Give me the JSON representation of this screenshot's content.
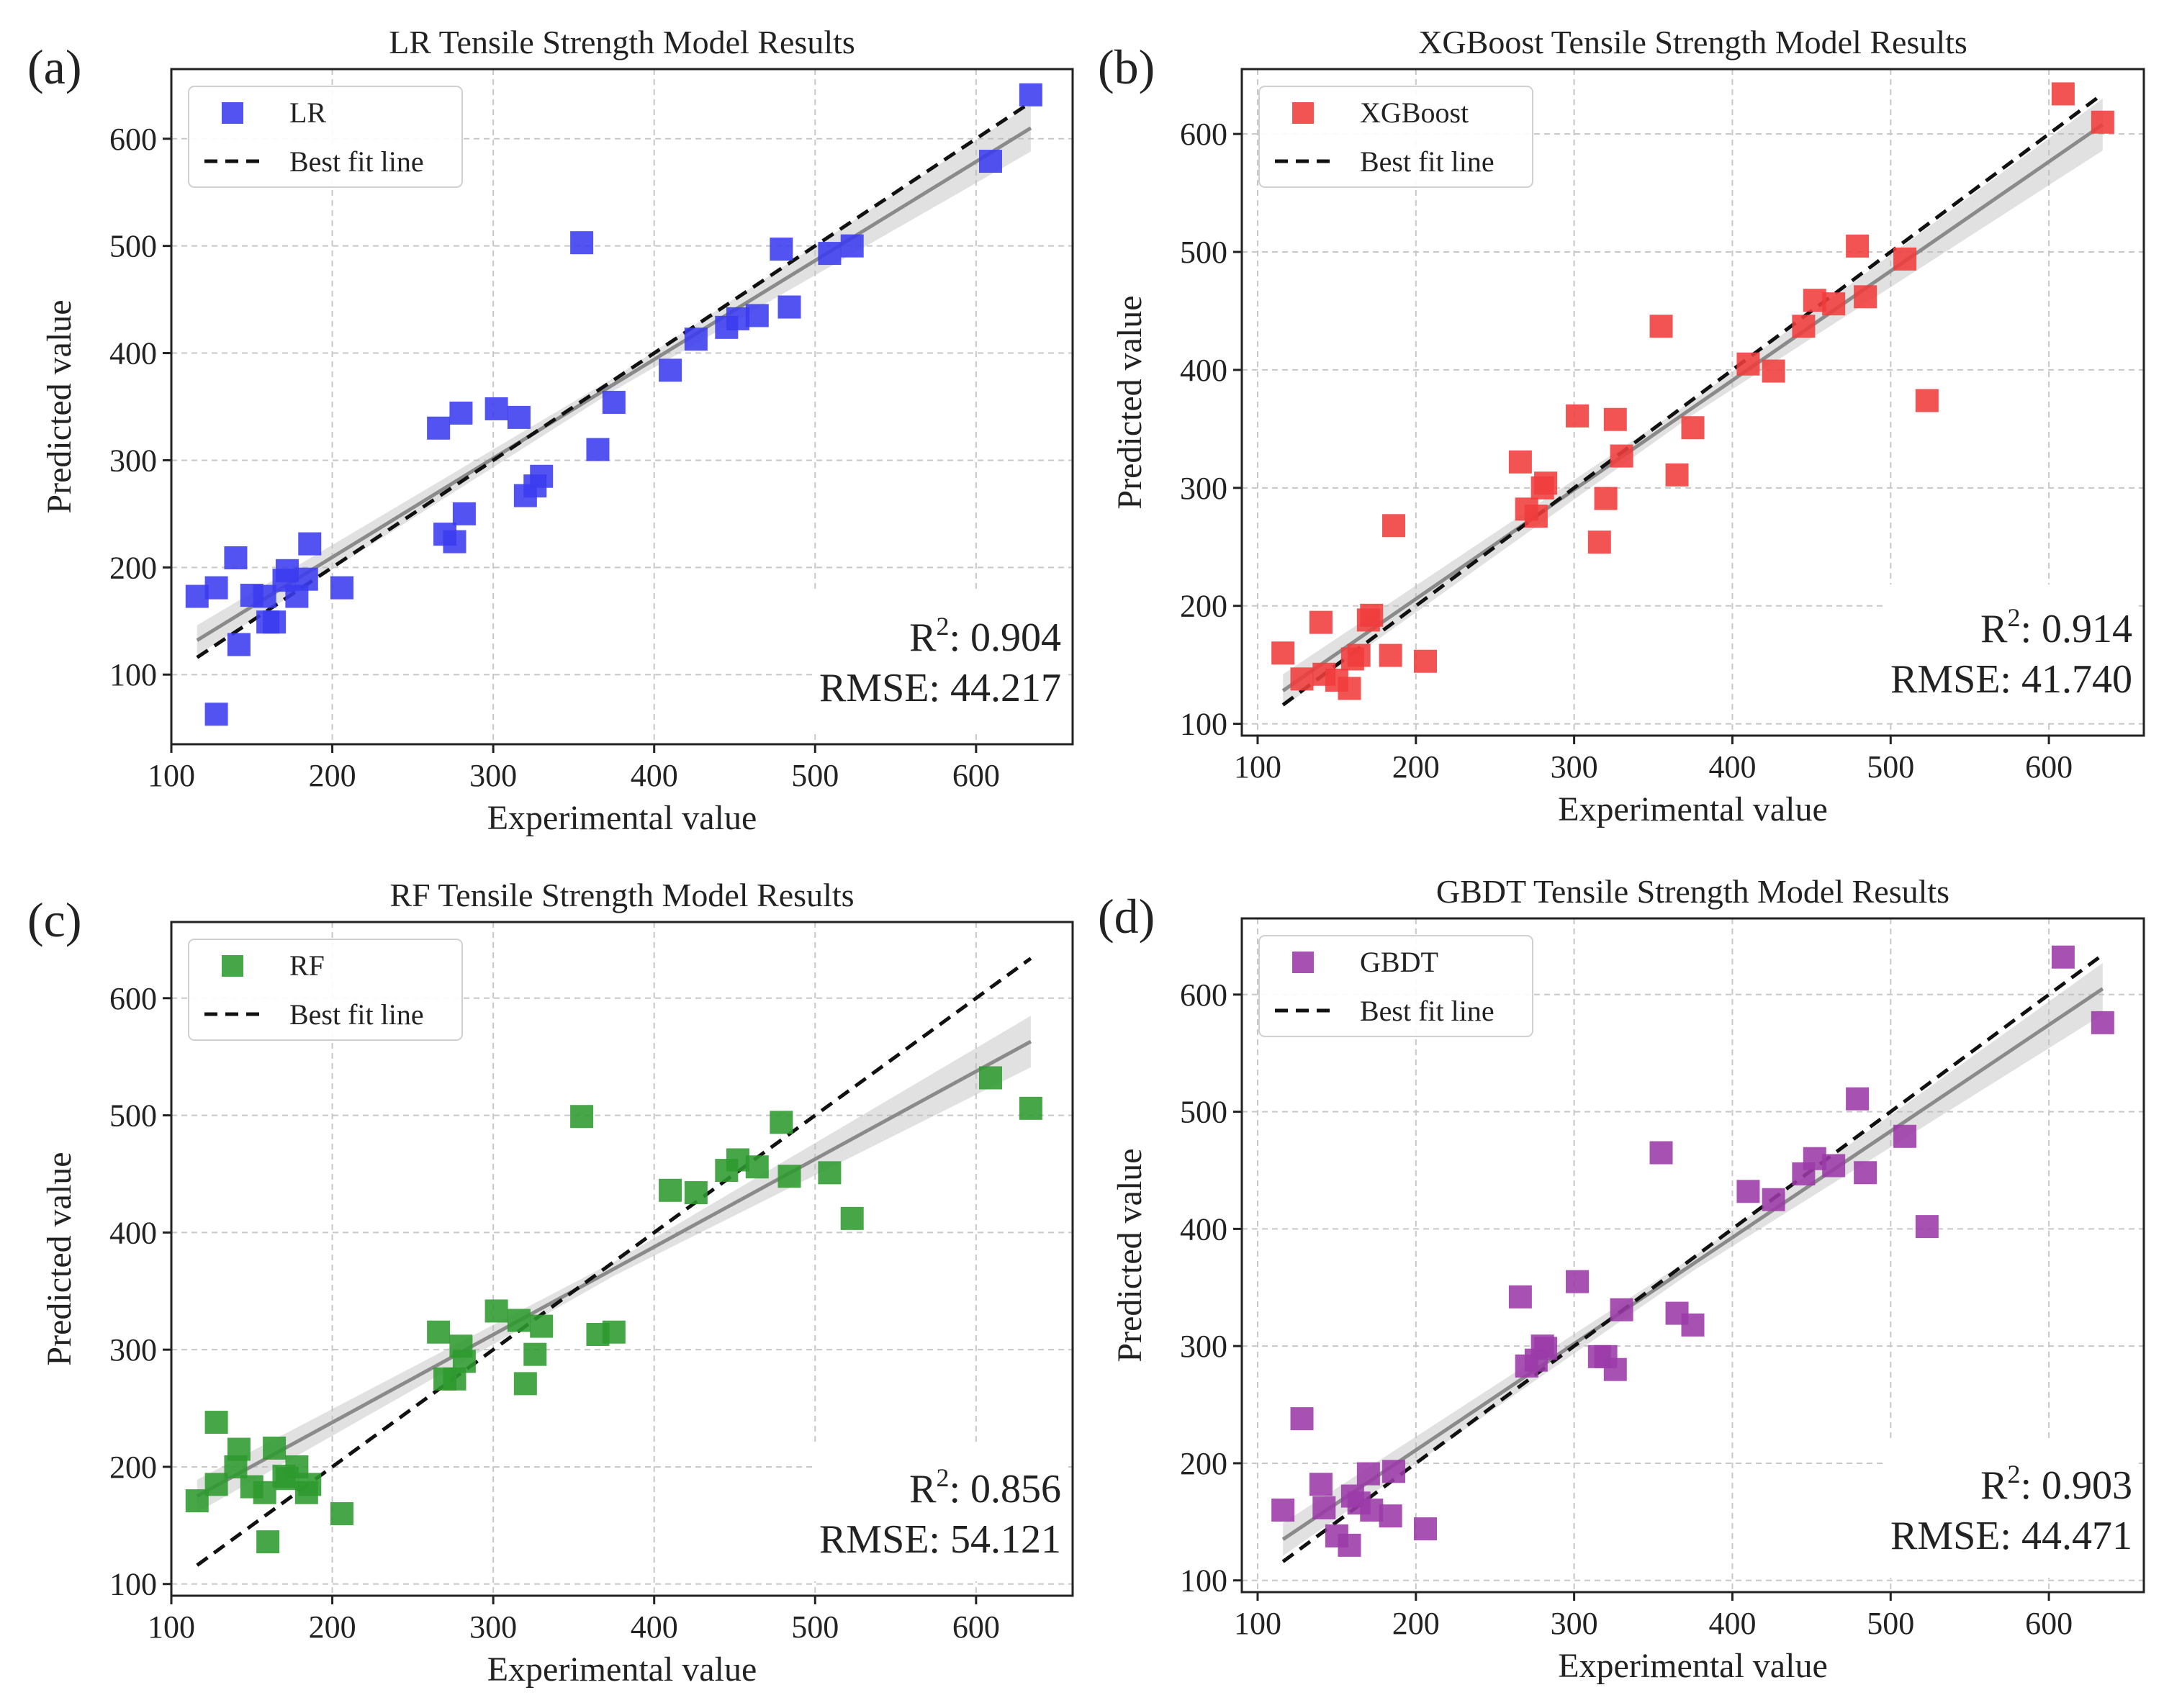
{
  "chart_data": [
    {
      "type": "scatter",
      "panel_label": "(a)",
      "title": "LR Tensile Strength Model Results",
      "xlabel": "Experimental value",
      "ylabel": "Predicted value",
      "xlim": [
        100,
        660
      ],
      "ylim": [
        35,
        665
      ],
      "xticks": [
        100,
        200,
        300,
        400,
        500,
        600
      ],
      "yticks": [
        100,
        200,
        300,
        400,
        500,
        600
      ],
      "grid": true,
      "legend_position": "top-left",
      "color": "#3b3bf0",
      "series": [
        {
          "name": "LR",
          "x": [
            116,
            128,
            128,
            140,
            142,
            150,
            158,
            160,
            164,
            170,
            172,
            178,
            184,
            186,
            206,
            266,
            270,
            276,
            280,
            282,
            302,
            316,
            320,
            326,
            330,
            355,
            365,
            375,
            410,
            426,
            445,
            452,
            464,
            479,
            484,
            509,
            523,
            609,
            634
          ],
          "y": [
            173,
            181,
            63,
            209,
            128,
            174,
            173,
            149,
            149,
            188,
            197,
            173,
            189,
            222,
            181,
            330,
            231,
            224,
            344,
            250,
            348,
            340,
            267,
            276,
            285,
            503,
            310,
            354,
            384,
            413,
            424,
            432,
            435,
            497,
            443,
            493,
            500,
            579,
            641
          ]
        }
      ],
      "ideal_line": {
        "name": "Best fit line",
        "x": [
          116,
          634
        ],
        "y": [
          116,
          634
        ]
      },
      "regression_line": {
        "x": [
          116,
          634
        ],
        "y": [
          132,
          610
        ]
      },
      "r2_label": "R",
      "r2_sup": "2",
      "r2_value": ": 0.904",
      "rmse_text": "RMSE: 44.217"
    },
    {
      "type": "scatter",
      "panel_label": "(b)",
      "title": "XGBoost Tensile Strength Model Results",
      "xlabel": "Experimental value",
      "ylabel": "Predicted value",
      "xlim": [
        90,
        660
      ],
      "ylim": [
        90,
        655
      ],
      "xticks": [
        100,
        200,
        300,
        400,
        500,
        600
      ],
      "yticks": [
        100,
        200,
        300,
        400,
        500,
        600
      ],
      "grid": true,
      "legend_position": "top-left",
      "color": "#f03b3b",
      "series": [
        {
          "name": "XGBoost",
          "x": [
            116,
            128,
            140,
            142,
            150,
            158,
            160,
            164,
            170,
            172,
            184,
            186,
            206,
            266,
            270,
            276,
            280,
            282,
            302,
            316,
            320,
            326,
            330,
            355,
            365,
            375,
            410,
            426,
            445,
            452,
            464,
            479,
            484,
            509,
            523,
            609,
            634
          ],
          "y": [
            160,
            138,
            186,
            142,
            137,
            130,
            155,
            158,
            188,
            192,
            158,
            268,
            153,
            322,
            282,
            276,
            300,
            304,
            361,
            254,
            291,
            358,
            327,
            437,
            311,
            351,
            405,
            399,
            437,
            459,
            456,
            505,
            462,
            494,
            374,
            634,
            610
          ]
        }
      ],
      "ideal_line": {
        "name": "Best fit line",
        "x": [
          116,
          634
        ],
        "y": [
          116,
          634
        ]
      },
      "regression_line": {
        "x": [
          116,
          634
        ],
        "y": [
          128,
          608
        ]
      },
      "r2_label": "R",
      "r2_sup": "2",
      "r2_value": ": 0.914",
      "rmse_text": "RMSE: 41.740"
    },
    {
      "type": "scatter",
      "panel_label": "(c)",
      "title": "RF Tensile Strength Model Results",
      "xlabel": "Experimental value",
      "ylabel": "Predicted value",
      "xlim": [
        100,
        660
      ],
      "ylim": [
        90,
        665
      ],
      "xticks": [
        100,
        200,
        300,
        400,
        500,
        600
      ],
      "yticks": [
        100,
        200,
        300,
        400,
        500,
        600
      ],
      "grid": true,
      "legend_position": "top-left",
      "color": "#2e9a2e",
      "series": [
        {
          "name": "RF",
          "x": [
            116,
            128,
            128,
            140,
            142,
            150,
            158,
            160,
            164,
            170,
            172,
            178,
            184,
            186,
            206,
            266,
            270,
            276,
            280,
            282,
            302,
            316,
            320,
            326,
            330,
            355,
            365,
            375,
            410,
            426,
            445,
            452,
            464,
            479,
            484,
            509,
            523,
            609,
            634
          ],
          "y": [
            171,
            185,
            238,
            200,
            215,
            183,
            178,
            136,
            216,
            192,
            190,
            200,
            178,
            185,
            160,
            315,
            275,
            275,
            303,
            290,
            333,
            325,
            271,
            296,
            320,
            499,
            313,
            315,
            436,
            434,
            453,
            462,
            456,
            494,
            448,
            451,
            412,
            532,
            506
          ]
        }
      ],
      "ideal_line": {
        "name": "Best fit line",
        "x": [
          116,
          634
        ],
        "y": [
          116,
          634
        ]
      },
      "regression_line": {
        "x": [
          116,
          634
        ],
        "y": [
          175,
          563
        ]
      },
      "r2_label": "R",
      "r2_sup": "2",
      "r2_value": ": 0.856",
      "rmse_text": "RMSE: 54.121"
    },
    {
      "type": "scatter",
      "panel_label": "(d)",
      "title": "GBDT Tensile Strength Model Results",
      "xlabel": "Experimental value",
      "ylabel": "Predicted value",
      "xlim": [
        90,
        660
      ],
      "ylim": [
        90,
        665
      ],
      "xticks": [
        100,
        200,
        300,
        400,
        500,
        600
      ],
      "yticks": [
        100,
        200,
        300,
        400,
        500,
        600
      ],
      "grid": true,
      "legend_position": "top-left",
      "color": "#9b3aa8",
      "series": [
        {
          "name": "GBDT",
          "x": [
            116,
            128,
            140,
            142,
            150,
            158,
            160,
            164,
            170,
            172,
            184,
            186,
            206,
            266,
            270,
            276,
            280,
            282,
            302,
            316,
            320,
            326,
            330,
            355,
            365,
            375,
            410,
            426,
            445,
            452,
            464,
            479,
            484,
            509,
            523,
            609,
            634
          ],
          "y": [
            160,
            238,
            182,
            162,
            138,
            130,
            172,
            166,
            191,
            160,
            155,
            193,
            144,
            342,
            283,
            288,
            300,
            298,
            355,
            291,
            291,
            280,
            331,
            465,
            328,
            318,
            432,
            425,
            447,
            460,
            454,
            511,
            448,
            479,
            402,
            632,
            576
          ]
        }
      ],
      "ideal_line": {
        "name": "Best fit line",
        "x": [
          116,
          634
        ],
        "y": [
          116,
          634
        ]
      },
      "regression_line": {
        "x": [
          116,
          634
        ],
        "y": [
          135,
          605
        ]
      },
      "r2_label": "R",
      "r2_sup": "2",
      "r2_value": ": 0.903",
      "rmse_text": "RMSE: 44.471"
    }
  ]
}
